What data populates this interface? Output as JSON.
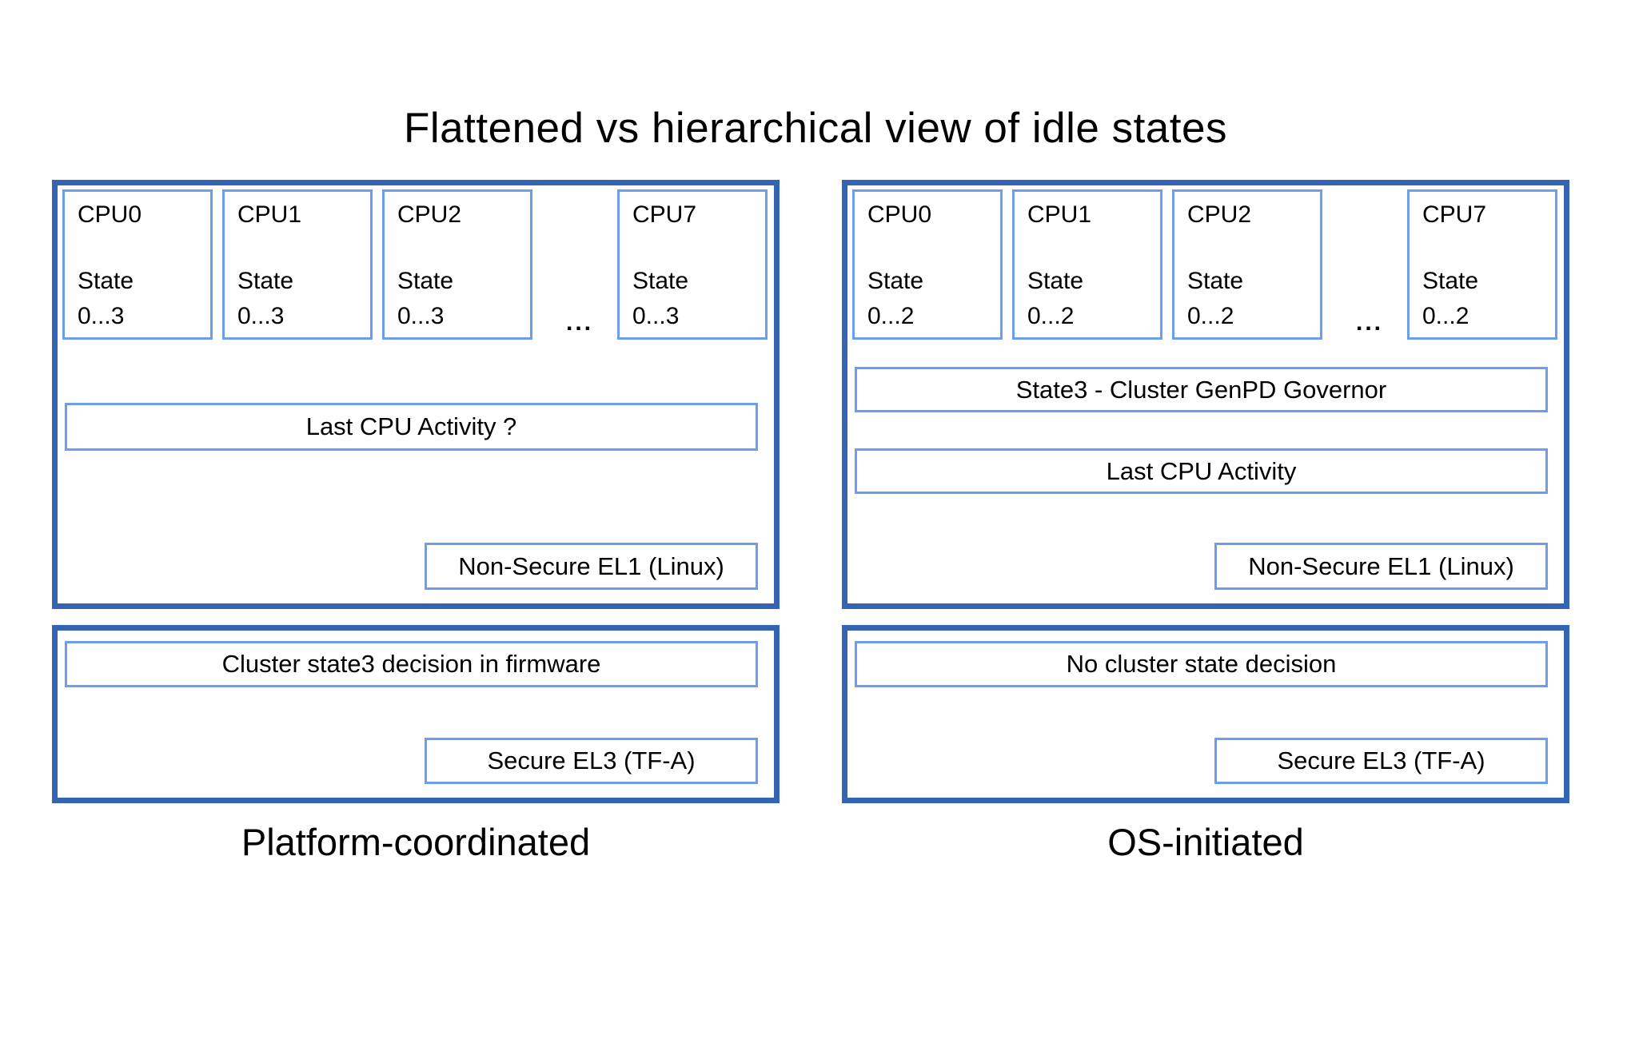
{
  "title": "Flattened vs hierarchical view of idle states",
  "ellipsis": "...",
  "colors": {
    "panel_border": "#3465b4",
    "box_border": "#6d9eeb",
    "text": "#000000",
    "background": "#ffffff"
  },
  "left": {
    "label": "Platform-coordinated",
    "cpus": [
      {
        "label": "CPU0",
        "state1": "State",
        "state2": "0...3"
      },
      {
        "label": "CPU1",
        "state1": "State",
        "state2": "0...3"
      },
      {
        "label": "CPU2",
        "state1": "State",
        "state2": "0...3"
      },
      {
        "label": "CPU7",
        "state1": "State",
        "state2": "0...3"
      }
    ],
    "activity_box": "Last CPU Activity ?",
    "el1_box": "Non-Secure EL1 (Linux)",
    "decision_box": "Cluster state3 decision in firmware",
    "el3_box": "Secure EL3 (TF-A)"
  },
  "right": {
    "label": "OS-initiated",
    "cpus": [
      {
        "label": "CPU0",
        "state1": "State",
        "state2": "0...2"
      },
      {
        "label": "CPU1",
        "state1": "State",
        "state2": "0...2"
      },
      {
        "label": "CPU2",
        "state1": "State",
        "state2": "0...2"
      },
      {
        "label": "CPU7",
        "state1": "State",
        "state2": "0...2"
      }
    ],
    "governor_box": "State3 - Cluster GenPD Governor",
    "activity_box": "Last CPU Activity",
    "el1_box": "Non-Secure EL1 (Linux)",
    "decision_box": "No cluster state decision",
    "el3_box": "Secure EL3 (TF-A)"
  }
}
